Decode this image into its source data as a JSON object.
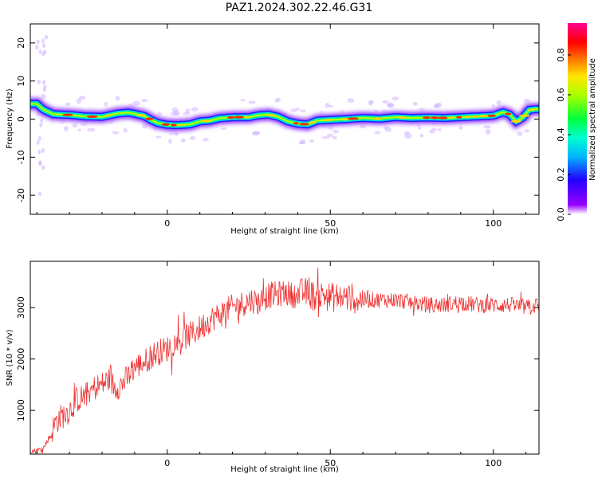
{
  "title": "PAZ1.2024.302.22.46.G31",
  "colors": {
    "line": "#ee3333",
    "axis": "#000000",
    "background": "#ffffff"
  },
  "chart_data": [
    {
      "type": "heatmap",
      "xlabel": "Height of straight line (km)",
      "ylabel": "Frequency (Hz)",
      "xlim": [
        -42,
        114
      ],
      "ylim": [
        -25,
        25
      ],
      "xticks": [
        0,
        50,
        100
      ],
      "yticks": [
        20,
        10,
        0,
        -10,
        -20
      ],
      "colorbar": {
        "label": "Normalized spectral amplitude",
        "range": [
          0,
          0.96
        ],
        "ticks": [
          "0.0",
          "0.2",
          "0.4",
          "0.6",
          "0.8"
        ],
        "colormap": "rainbow (purple-blue-cyan-green-yellow-orange-red-magenta)"
      },
      "ridge_x": [
        -40,
        -38,
        -35,
        -30,
        -25,
        -20,
        -15,
        -12,
        -10,
        -7,
        -5,
        -3,
        0,
        3,
        5,
        7,
        10,
        13,
        16,
        19,
        22,
        25,
        28,
        31,
        34,
        37,
        40,
        43,
        46,
        50,
        55,
        60,
        65,
        70,
        75,
        80,
        85,
        90,
        95,
        100,
        103,
        105,
        107,
        109,
        111,
        113
      ],
      "ridge_freq": [
        4,
        2.5,
        1.3,
        1.1,
        0.7,
        0.6,
        1.5,
        1.7,
        1.4,
        0.8,
        -0.2,
        -1.0,
        -1.5,
        -1.6,
        -1.5,
        -1.4,
        -0.6,
        -0.4,
        0.2,
        0.4,
        0.5,
        0.5,
        1.0,
        1.2,
        0.6,
        -0.6,
        -1.2,
        -1.4,
        -0.4,
        -0.2,
        0.0,
        0.3,
        0.1,
        0.5,
        0.3,
        0.4,
        0.3,
        0.5,
        0.7,
        0.9,
        1.8,
        1.2,
        -0.6,
        0.4,
        2.4,
        2.6
      ]
    },
    {
      "type": "line",
      "xlabel": "Height of straight line (km)",
      "ylabel": "SNR (10 * v/v)",
      "xlim": [
        -42,
        114
      ],
      "ylim": [
        150,
        3900
      ],
      "xticks": [
        0,
        50,
        100
      ],
      "yticks": [
        1000,
        2000,
        3000
      ],
      "series": [
        {
          "x": [
            -42,
            -40,
            -38,
            -36,
            -34,
            -32,
            -30,
            -28,
            -26,
            -24,
            -22,
            -20,
            -18,
            -16,
            -14,
            -12,
            -10,
            -8,
            -6,
            -4,
            -2,
            0,
            2,
            4,
            6,
            8,
            10,
            12,
            14,
            16,
            18,
            20,
            22,
            24,
            26,
            28,
            30,
            32,
            34,
            36,
            38,
            40,
            42,
            44,
            46,
            48,
            50,
            55,
            60,
            65,
            70,
            75,
            80,
            85,
            90,
            95,
            100,
            105,
            110,
            114
          ],
          "y": [
            200,
            220,
            260,
            500,
            800,
            900,
            1000,
            1200,
            1250,
            1350,
            1450,
            1500,
            1600,
            1450,
            1500,
            1650,
            1850,
            1900,
            2000,
            2100,
            2150,
            2200,
            2300,
            2350,
            2450,
            2500,
            2600,
            2700,
            2800,
            2850,
            2950,
            3000,
            3050,
            3100,
            3150,
            3100,
            3200,
            3250,
            3250,
            3300,
            3250,
            3250,
            3300,
            3250,
            3200,
            3250,
            3200,
            3200,
            3150,
            3150,
            3150,
            3100,
            3050,
            3050,
            3100,
            3050,
            3050,
            3050,
            3000,
            3050
          ]
        }
      ]
    }
  ]
}
